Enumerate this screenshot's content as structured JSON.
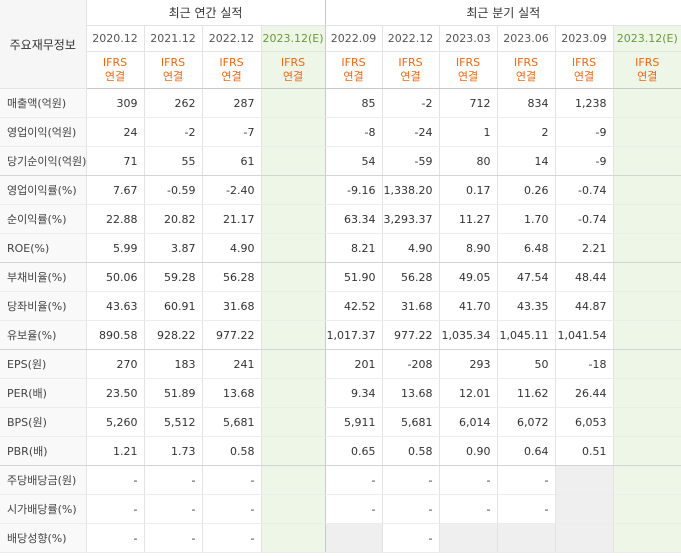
{
  "header_label": "주요재무정보",
  "annual_title": "최근 연간 실적",
  "quarter_title": "최근 분기 실적",
  "periods": [
    "2020.12",
    "2021.12",
    "2022.12",
    "2023.12(E)",
    "2022.09",
    "2022.12",
    "2023.03",
    "2023.06",
    "2023.09",
    "2023.12(E)"
  ],
  "ifrs_top": "IFRS",
  "ifrs_bottom": "연결",
  "rows": [
    {
      "label": "매출액(억원)",
      "values": [
        "309",
        "262",
        "287",
        "",
        "85",
        "-2",
        "712",
        "834",
        "1,238",
        ""
      ]
    },
    {
      "label": "영업이익(억원)",
      "values": [
        "24",
        "-2",
        "-7",
        "",
        "-8",
        "-24",
        "1",
        "2",
        "-9",
        ""
      ]
    },
    {
      "label": "당기순이익(억원)",
      "values": [
        "71",
        "55",
        "61",
        "",
        "54",
        "-59",
        "80",
        "14",
        "-9",
        ""
      ]
    },
    {
      "label": "영업이익률(%)",
      "values": [
        "7.67",
        "-0.59",
        "-2.40",
        "",
        "-9.16",
        "1,338.20",
        "0.17",
        "0.26",
        "-0.74",
        ""
      ]
    },
    {
      "label": "순이익률(%)",
      "values": [
        "22.88",
        "20.82",
        "21.17",
        "",
        "63.34",
        "3,293.37",
        "11.27",
        "1.70",
        "-0.74",
        ""
      ]
    },
    {
      "label": "ROE(%)",
      "values": [
        "5.99",
        "3.87",
        "4.90",
        "",
        "8.21",
        "4.90",
        "8.90",
        "6.48",
        "2.21",
        ""
      ]
    },
    {
      "label": "부채비율(%)",
      "values": [
        "50.06",
        "59.28",
        "56.28",
        "",
        "51.90",
        "56.28",
        "49.05",
        "47.54",
        "48.44",
        ""
      ]
    },
    {
      "label": "당좌비율(%)",
      "values": [
        "43.63",
        "60.91",
        "31.68",
        "",
        "42.52",
        "31.68",
        "41.70",
        "43.35",
        "44.87",
        ""
      ]
    },
    {
      "label": "유보율(%)",
      "values": [
        "890.58",
        "928.22",
        "977.22",
        "",
        "1,017.37",
        "977.22",
        "1,035.34",
        "1,045.11",
        "1,041.54",
        ""
      ]
    },
    {
      "label": "EPS(원)",
      "values": [
        "270",
        "183",
        "241",
        "",
        "201",
        "-208",
        "293",
        "50",
        "-18",
        ""
      ]
    },
    {
      "label": "PER(배)",
      "values": [
        "23.50",
        "51.89",
        "13.68",
        "",
        "9.34",
        "13.68",
        "12.01",
        "11.62",
        "26.44",
        ""
      ]
    },
    {
      "label": "BPS(원)",
      "values": [
        "5,260",
        "5,512",
        "5,681",
        "",
        "5,911",
        "5,681",
        "6,014",
        "6,072",
        "6,053",
        ""
      ]
    },
    {
      "label": "PBR(배)",
      "values": [
        "1.21",
        "1.73",
        "0.58",
        "",
        "0.65",
        "0.58",
        "0.90",
        "0.64",
        "0.51",
        ""
      ]
    },
    {
      "label": "주당배당금(원)",
      "values": [
        "-",
        "-",
        "-",
        "",
        "-",
        "-",
        "-",
        "-",
        "",
        ""
      ]
    },
    {
      "label": "시가배당률(%)",
      "values": [
        "-",
        "-",
        "-",
        "",
        "-",
        "-",
        "-",
        "-",
        "",
        ""
      ]
    },
    {
      "label": "배당성향(%)",
      "values": [
        "-",
        "-",
        "-",
        "",
        "",
        "-",
        "",
        "",
        "",
        ""
      ]
    }
  ]
}
